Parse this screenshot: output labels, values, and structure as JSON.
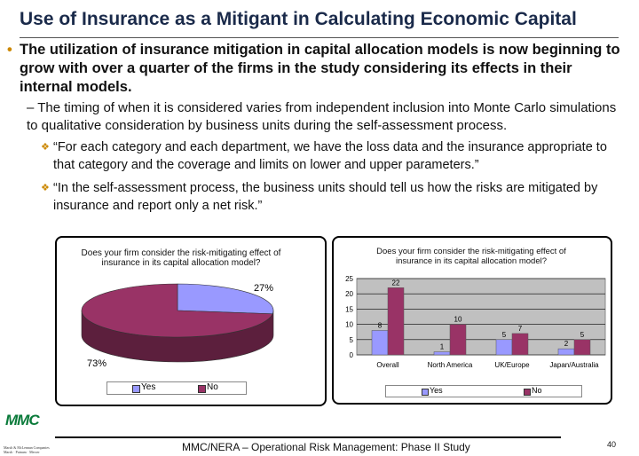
{
  "title": "Use of Insurance as a Mitigant in Calculating Economic Capital",
  "bullets": {
    "main": "The utilization of insurance mitigation in capital allocation models is now beginning to grow with over a quarter of the firms in the study considering its effects in their internal models.",
    "sub": "The timing of when it is considered varies from independent inclusion into Monte Carlo simulations to qualitative consideration by business units during the self-assessment process.",
    "quotes": [
      "“For each category and each department, we have the loss data and the insurance appropriate to that category and the coverage and limits on lower and upper parameters.”",
      "“In the self-assessment process, the business units should tell us how the risks are mitigated by insurance and report only a net risk.”"
    ]
  },
  "chart_data": [
    {
      "type": "pie",
      "title": "Does your firm consider the risk-mitigating effect of insurance in its capital allocation model?",
      "labels": [
        "Yes",
        "No"
      ],
      "values": [
        27,
        73
      ],
      "data_labels": [
        "27%",
        "73%"
      ],
      "colors": [
        "#9999ff",
        "#993366"
      ],
      "legend": "bottom"
    },
    {
      "type": "bar",
      "title": "Does your firm consider the risk-mitigating effect of insurance in its capital allocation model?",
      "categories": [
        "Overall",
        "North America",
        "UK/Europe",
        "Japan/Australia"
      ],
      "series": [
        {
          "name": "Yes",
          "values": [
            8,
            1,
            5,
            2
          ],
          "color": "#9999ff"
        },
        {
          "name": "No",
          "values": [
            22,
            10,
            7,
            5
          ],
          "color": "#993366"
        }
      ],
      "ylim": [
        0,
        25
      ],
      "yticks": [
        "0",
        "5",
        "10",
        "15",
        "20",
        "25"
      ],
      "grid": true,
      "legend": "bottom"
    }
  ],
  "footer": {
    "text": "MMC/NERA – Operational Risk Management: Phase II Study",
    "page": "40",
    "logo": "MMC",
    "logo_line1": "Marsh & McLennan Companies",
    "logo_line2": "Marsh · Putnam · Mercer"
  }
}
